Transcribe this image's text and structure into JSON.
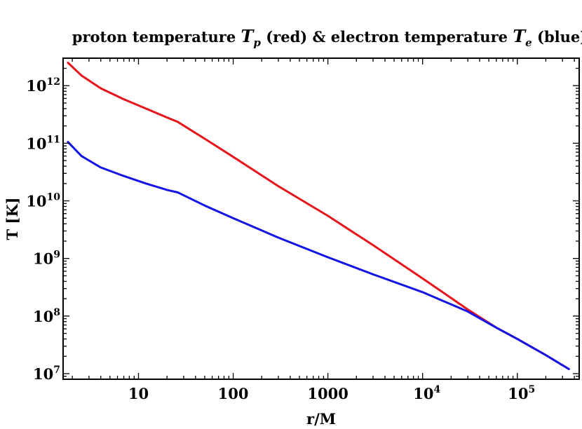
{
  "chart_data": {
    "type": "line",
    "title": {
      "part1": "proton temperature ",
      "sym1": "T",
      "sub1": "p",
      "part2": " (red) & electron temperature ",
      "sym2": "T",
      "sub2": "e",
      "part3": " (blue)"
    },
    "xlabel": "r/M",
    "ylabel": "T [K]",
    "x_scale": "log",
    "y_scale": "log",
    "xlim": [
      1.6,
      450000
    ],
    "ylim": [
      8000000,
      3000000000000
    ],
    "x_ticks": [
      {
        "value": 10,
        "base": "10",
        "exp": ""
      },
      {
        "value": 100,
        "base": "100",
        "exp": ""
      },
      {
        "value": 1000,
        "base": "1000",
        "exp": ""
      },
      {
        "value": 10000,
        "base": "10",
        "exp": "4"
      },
      {
        "value": 100000,
        "base": "10",
        "exp": "5"
      }
    ],
    "y_ticks": [
      {
        "value": 10000000,
        "base": "10",
        "exp": "7"
      },
      {
        "value": 100000000,
        "base": "10",
        "exp": "8"
      },
      {
        "value": 1000000000,
        "base": "10",
        "exp": "9"
      },
      {
        "value": 10000000000,
        "base": "10",
        "exp": "10"
      },
      {
        "value": 100000000000,
        "base": "10",
        "exp": "11"
      },
      {
        "value": 1000000000000,
        "base": "10",
        "exp": "12"
      }
    ],
    "grid": false,
    "series": [
      {
        "color": "#e8141c",
        "x": [
          1.8,
          2.5,
          4,
          7,
          12,
          20,
          26,
          50,
          100,
          300,
          1000,
          3000,
          10000,
          30000,
          60000,
          100000,
          200000,
          350000
        ],
        "y": [
          2500000000000,
          1500000000000,
          900000000000,
          580000000000,
          400000000000,
          280000000000,
          235000000000,
          120000000000,
          58000000000,
          18000000000,
          5500000000,
          1700000000,
          450000000,
          130000000,
          63000000,
          40000000,
          21000000,
          12000000
        ]
      },
      {
        "color": "#1414e8",
        "x": [
          1.8,
          2.5,
          4,
          7,
          12,
          20,
          26,
          50,
          100,
          300,
          1000,
          3000,
          10000,
          30000,
          60000,
          100000,
          200000,
          350000
        ],
        "y": [
          105000000000,
          60000000000,
          38000000000,
          27000000000,
          20000000000,
          15500000000,
          14000000000,
          8300000000,
          5000000000,
          2300000000,
          1050000000,
          530000000,
          260000000,
          120000000,
          63000000,
          40000000,
          21000000,
          12000000
        ]
      }
    ]
  }
}
